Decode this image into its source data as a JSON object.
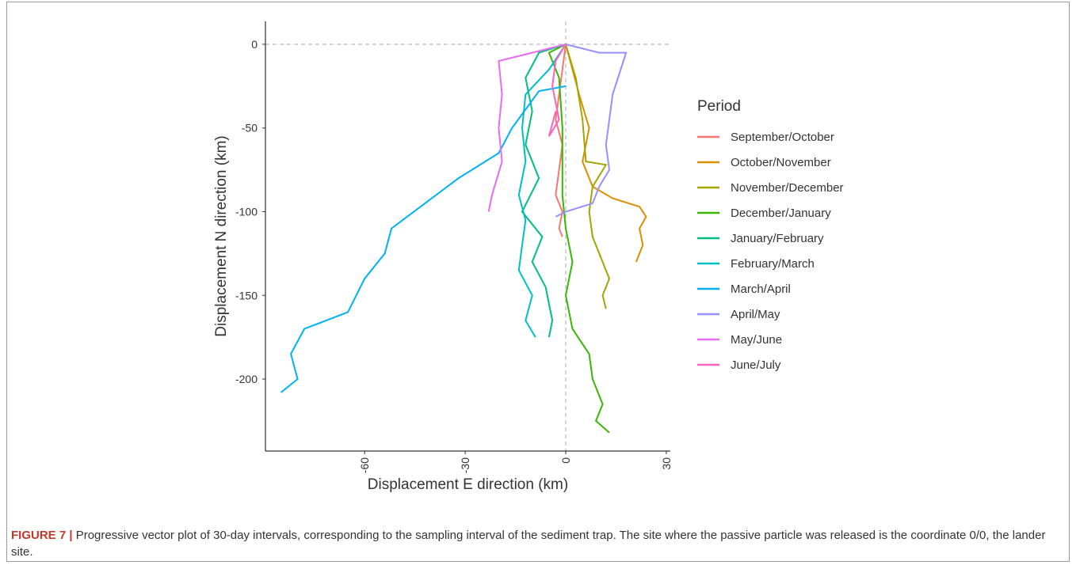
{
  "chart_data": {
    "type": "line",
    "xlabel": "Displacement E direction (km)",
    "ylabel": "Displacement N direction (km)",
    "xlim": [
      -89.6,
      31.2
    ],
    "ylim": [
      -243,
      13.7
    ],
    "xticks": [
      -60,
      -30,
      0,
      30
    ],
    "yticks": [
      0,
      -50,
      -100,
      -150,
      -200
    ],
    "hline": 0,
    "vline": 0,
    "legend_title": "Period",
    "legend_position": "right",
    "series": [
      {
        "name": "September/October",
        "color": "#F8766D",
        "x": [
          0,
          -1,
          -2,
          -3,
          -1,
          -2,
          -3,
          -1,
          -2,
          -1
        ],
        "values": [
          0,
          -15,
          -30,
          -45,
          -60,
          -75,
          -90,
          -100,
          -110,
          -115
        ]
      },
      {
        "name": "October/November",
        "color": "#D89000",
        "x": [
          0,
          4,
          7,
          5,
          8,
          14,
          22,
          24,
          22,
          23,
          21
        ],
        "values": [
          0,
          -30,
          -50,
          -70,
          -85,
          -92,
          -97,
          -103,
          -110,
          -120,
          -130
        ]
      },
      {
        "name": "November/December",
        "color": "#A3A500",
        "x": [
          0,
          3,
          5,
          6,
          12,
          8,
          7,
          8,
          10,
          13,
          11,
          12
        ],
        "values": [
          0,
          -20,
          -45,
          -70,
          -72,
          -85,
          -100,
          -115,
          -125,
          -140,
          -150,
          -158
        ]
      },
      {
        "name": "December/January",
        "color": "#39B600",
        "x": [
          0,
          -5,
          -2,
          -1,
          -1,
          0,
          2,
          0,
          2,
          7,
          8,
          11,
          9,
          13
        ],
        "values": [
          0,
          -5,
          -20,
          -50,
          -90,
          -110,
          -130,
          -150,
          -170,
          -185,
          -200,
          -215,
          -225,
          -232
        ]
      },
      {
        "name": "January/February",
        "color": "#00BF7D",
        "x": [
          0,
          -8,
          -12,
          -10,
          -12,
          -8,
          -13,
          -7,
          -10,
          -6,
          -4,
          -5
        ],
        "values": [
          0,
          -5,
          -20,
          -40,
          -60,
          -80,
          -100,
          -115,
          -130,
          -145,
          -165,
          -175
        ]
      },
      {
        "name": "February/March",
        "color": "#00BFC4",
        "x": [
          0,
          -5,
          -12,
          -13,
          -12,
          -14,
          -12,
          -13,
          -14,
          -10,
          -12,
          -9
        ],
        "values": [
          0,
          -15,
          -30,
          -50,
          -70,
          -90,
          -105,
          -120,
          -135,
          -150,
          -165,
          -175
        ]
      },
      {
        "name": "March/April",
        "color": "#00B0F6",
        "x": [
          0,
          -8,
          -16,
          -20,
          -32,
          -42,
          -52,
          -54,
          -60,
          -65,
          -78,
          -82,
          -80,
          -85
        ],
        "values": [
          -25,
          -28,
          -50,
          -65,
          -80,
          -95,
          -110,
          -125,
          -140,
          -160,
          -170,
          -185,
          -200,
          -208
        ]
      },
      {
        "name": "April/May",
        "color": "#9590FF",
        "x": [
          0,
          10,
          18,
          14,
          12,
          13,
          10,
          8,
          0,
          -3
        ],
        "values": [
          0,
          -5,
          -5,
          -30,
          -60,
          -75,
          -85,
          -95,
          -100,
          -103
        ]
      },
      {
        "name": "May/June",
        "color": "#E76BF3",
        "x": [
          0,
          -10,
          -20,
          -19,
          -20,
          -19,
          -22,
          -23
        ],
        "values": [
          0,
          -5,
          -10,
          -30,
          -50,
          -70,
          -90,
          -100
        ]
      },
      {
        "name": "June/July",
        "color": "#FF62BC",
        "x": [
          0,
          -3,
          -4,
          -2,
          -5,
          -3
        ],
        "values": [
          0,
          -10,
          -25,
          -45,
          -55,
          -40
        ]
      }
    ]
  },
  "caption": {
    "label": "FIGURE 7 |",
    "text": "Progressive vector plot of 30-day intervals, corresponding to the sampling interval of the sediment trap. The site where the passive particle was released is the coordinate 0/0, the lander site."
  }
}
